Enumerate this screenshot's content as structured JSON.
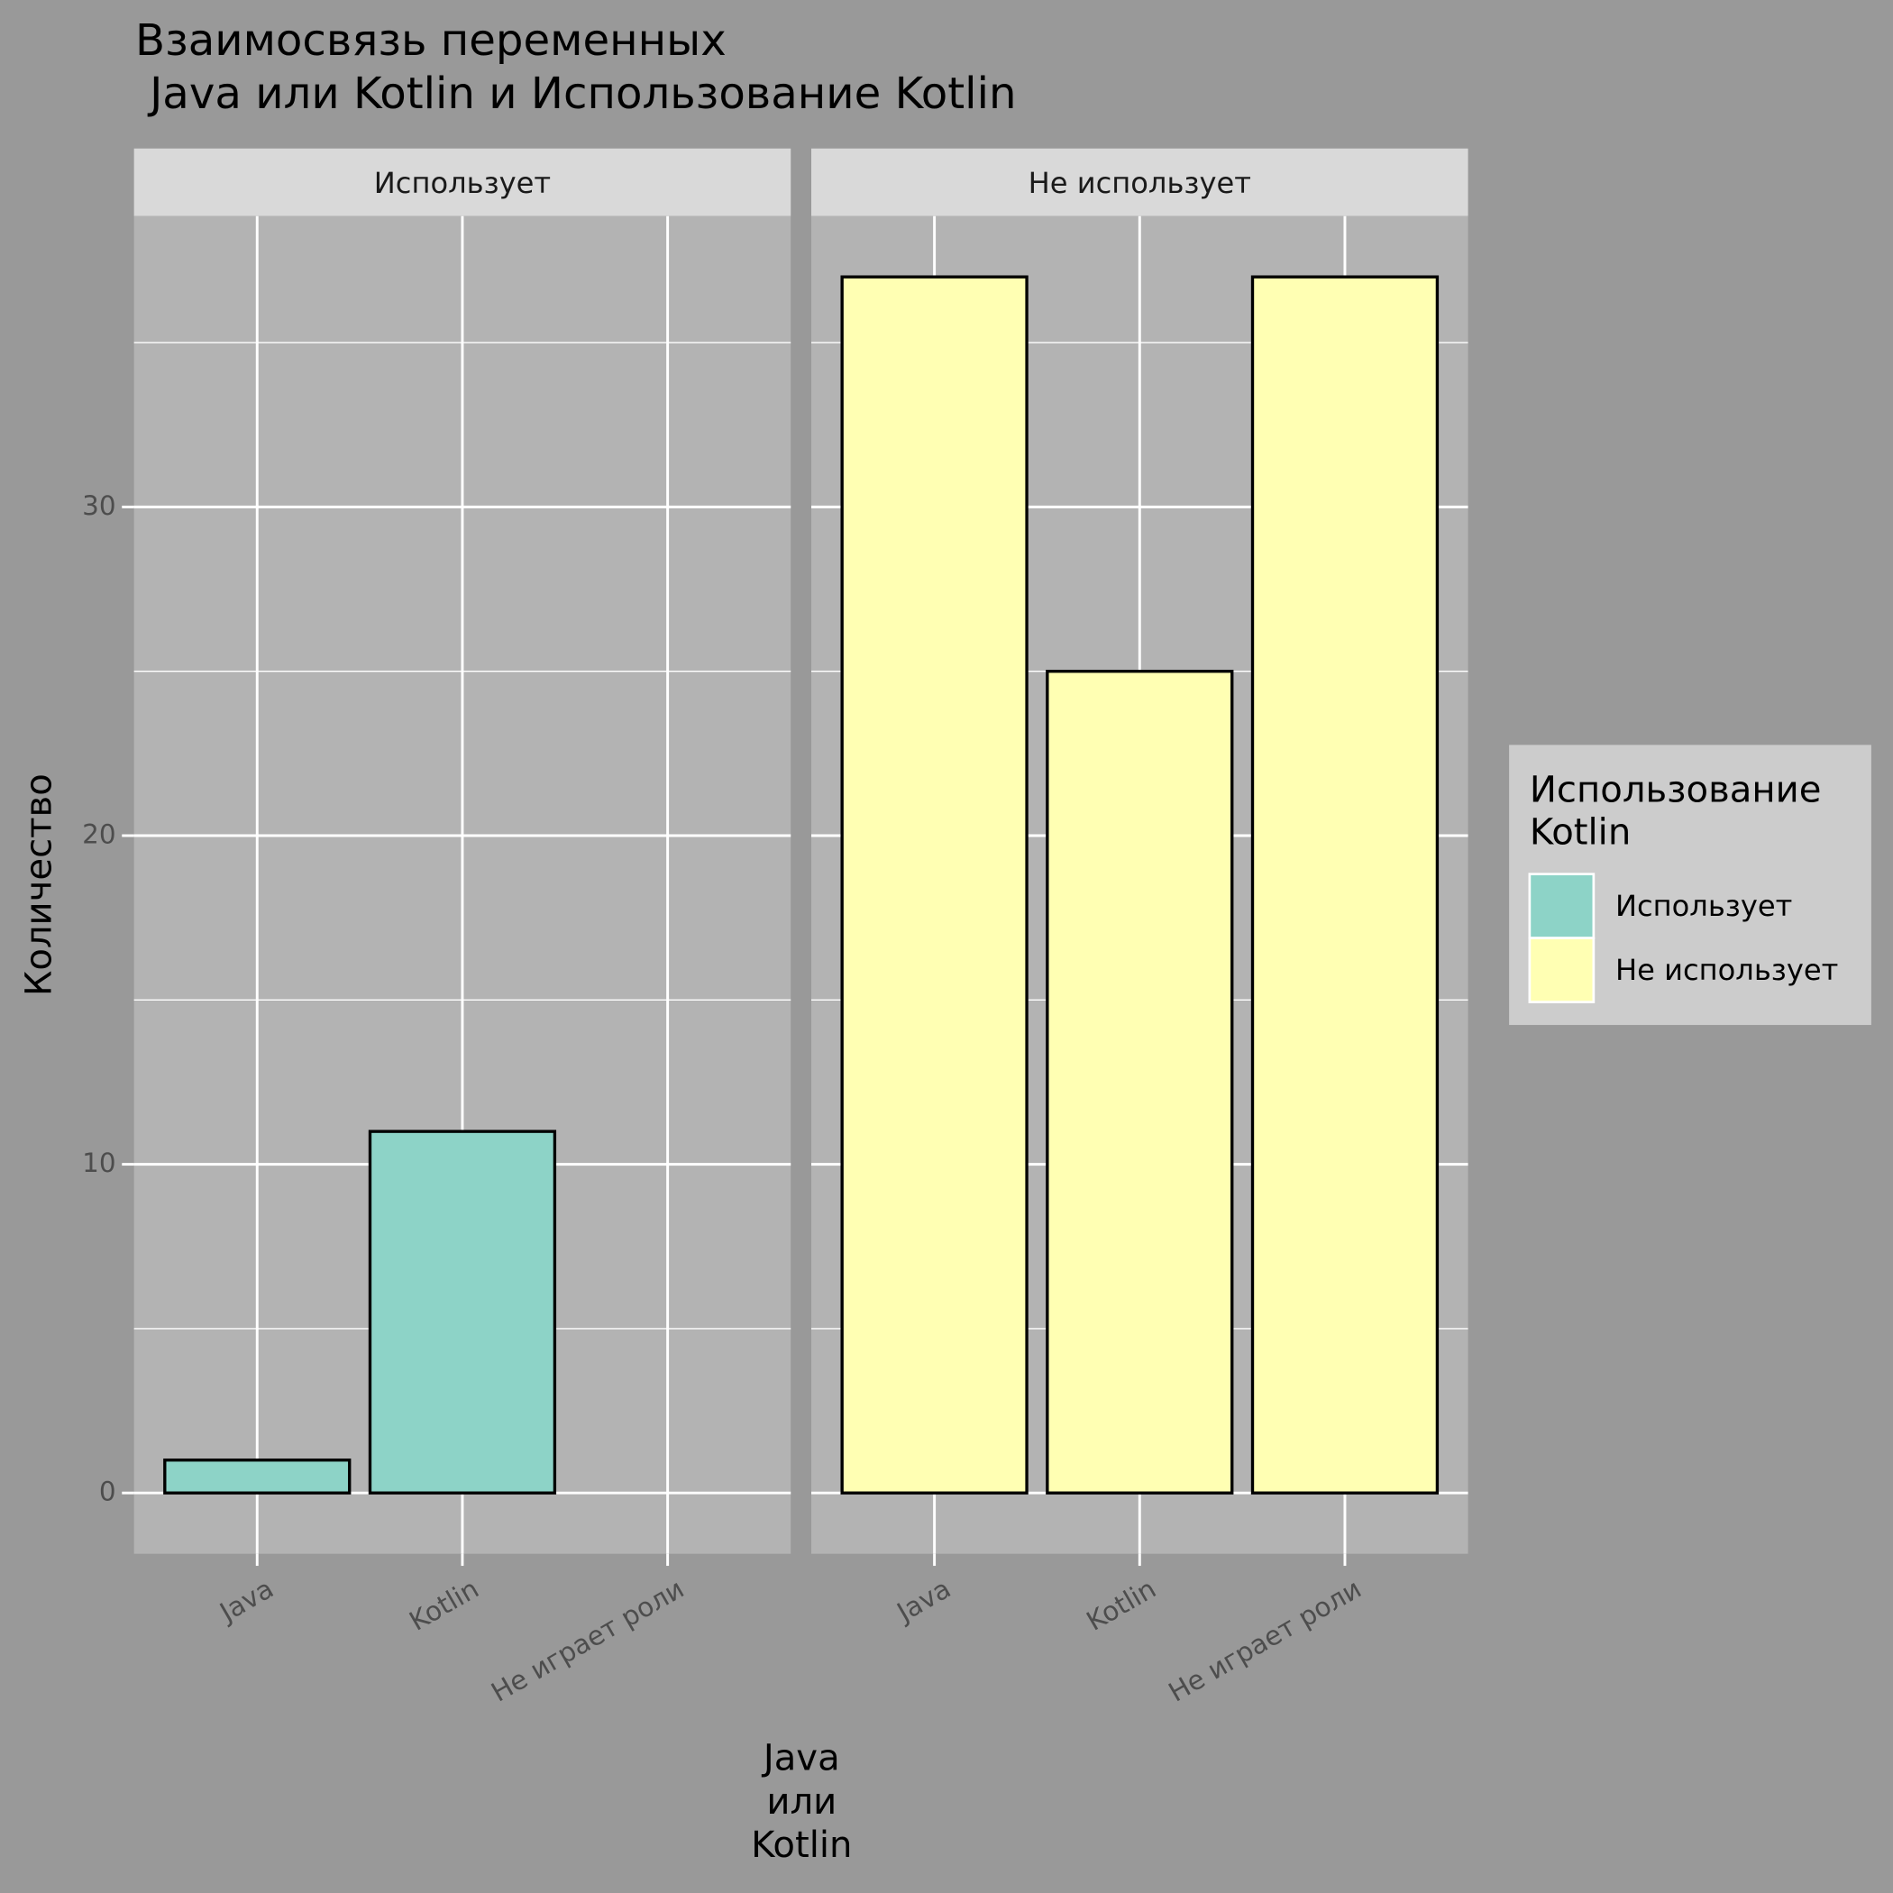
{
  "chart_data": {
    "type": "bar",
    "title": [
      "Взаимосвязь переменных",
      "Java или Kotlin и Использование Kotlin"
    ],
    "x_label": [
      "Java",
      "или",
      "Kotlin"
    ],
    "y_label": "Количество",
    "legend_title": [
      "Использование",
      "Kotlin"
    ],
    "legend_position": "right",
    "grid": true,
    "categories": [
      "Java",
      "Kotlin",
      "Не играет роли"
    ],
    "series": [
      {
        "name": "Использует",
        "color": "#8dd3c7",
        "values": [
          1,
          11,
          null
        ]
      },
      {
        "name": "Не использует",
        "color": "#ffffb3",
        "values": [
          37,
          25,
          37
        ]
      }
    ],
    "ylim": [
      -1.85,
      38.85
    ],
    "yticks": [
      0,
      10,
      20,
      30
    ]
  }
}
